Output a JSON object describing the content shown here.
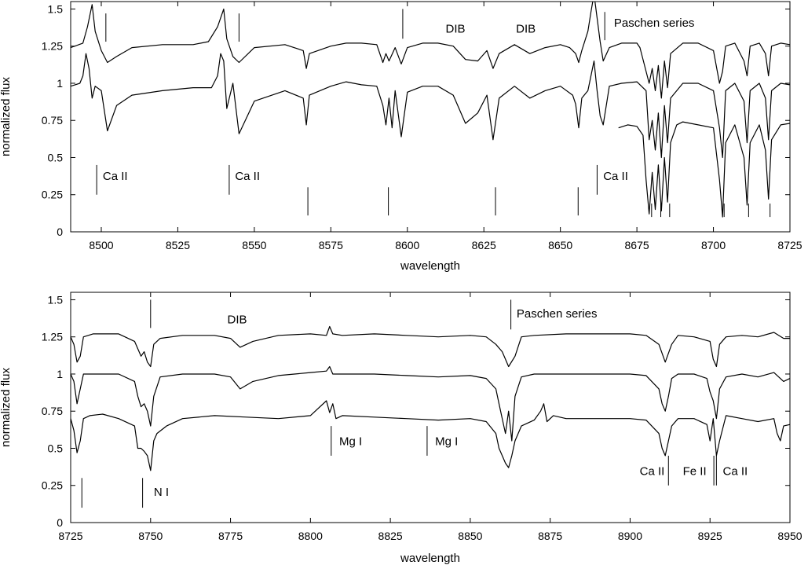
{
  "chart_data": [
    {
      "type": "line",
      "xlabel": "wavelength",
      "ylabel": "normalized flux",
      "xlim": [
        8490,
        8725
      ],
      "ylim": [
        0,
        1.55
      ],
      "x_ticks": [
        "8500",
        "8525",
        "8550",
        "8575",
        "8600",
        "8625",
        "8650",
        "8675",
        "8700",
        "8725"
      ],
      "x_tick_values": [
        8500,
        8525,
        8550,
        8575,
        8600,
        8625,
        8650,
        8675,
        8700,
        8725
      ],
      "y_ticks": [
        "0",
        "0.25",
        "0.5",
        "0.75",
        "1",
        "1.25",
        "1.5"
      ],
      "y_tick_values": [
        0,
        0.25,
        0.5,
        0.75,
        1,
        1.25,
        1.5
      ],
      "grid": false,
      "series": [
        {
          "x": [
            8490,
            8494,
            8495.5,
            8497,
            8498,
            8500,
            8502,
            8505,
            8510,
            8520,
            8530,
            8535,
            8538,
            8540,
            8541,
            8543,
            8545,
            8550,
            8560,
            8566,
            8567,
            8568,
            8575,
            8580,
            8585,
            8590,
            8592,
            8593,
            8594,
            8596,
            8598,
            8600,
            8605,
            8610,
            8615,
            8619,
            8623,
            8626,
            8628,
            8630,
            8635,
            8640,
            8645,
            8650,
            8653,
            8655,
            8656,
            8657,
            8659,
            8660,
            8661,
            8662,
            8663,
            8664,
            8666,
            8670,
            8675,
            8676,
            8679,
            8680,
            8681,
            8682,
            8683,
            8684,
            8685,
            8686,
            8690,
            8695,
            8700,
            8702,
            8703,
            8704,
            8707,
            8710,
            8711,
            8712,
            8715,
            8717,
            8718,
            8719,
            8722,
            8725
          ],
          "y": [
            1.24,
            1.27,
            1.38,
            1.53,
            1.35,
            1.22,
            1.14,
            1.18,
            1.24,
            1.26,
            1.26,
            1.28,
            1.38,
            1.5,
            1.3,
            1.18,
            1.14,
            1.24,
            1.26,
            1.22,
            1.1,
            1.2,
            1.25,
            1.27,
            1.27,
            1.26,
            1.14,
            1.2,
            1.15,
            1.24,
            1.13,
            1.24,
            1.27,
            1.27,
            1.25,
            1.16,
            1.15,
            1.22,
            1.1,
            1.2,
            1.26,
            1.2,
            1.24,
            1.26,
            1.24,
            1.2,
            1.14,
            1.22,
            1.35,
            1.48,
            1.6,
            1.44,
            1.28,
            1.15,
            1.24,
            1.27,
            1.27,
            1.24,
            1.0,
            1.1,
            0.95,
            1.12,
            0.9,
            1.15,
            0.97,
            1.2,
            1.27,
            1.27,
            1.22,
            1.0,
            1.08,
            1.25,
            1.27,
            1.15,
            1.05,
            1.25,
            1.27,
            1.2,
            1.05,
            1.25,
            1.27,
            1.26
          ]
        },
        {
          "x": [
            8490,
            8493,
            8494,
            8495,
            8496,
            8497,
            8498,
            8500,
            8502,
            8505,
            8510,
            8520,
            8530,
            8536,
            8538,
            8539,
            8540,
            8541,
            8543,
            8545,
            8550,
            8560,
            8566,
            8567,
            8568,
            8575,
            8580,
            8585,
            8590,
            8592,
            8593,
            8594,
            8595,
            8596,
            8598,
            8600,
            8605,
            8610,
            8615,
            8619,
            8623,
            8626,
            8628,
            8630,
            8635,
            8640,
            8645,
            8650,
            8654,
            8655,
            8656,
            8657,
            8659,
            8660,
            8661,
            8662,
            8663,
            8664,
            8666,
            8670,
            8675,
            8678,
            8679,
            8680,
            8681,
            8682,
            8683,
            8684,
            8685,
            8686,
            8690,
            8695,
            8700,
            8702,
            8703,
            8704,
            8707,
            8710,
            8711,
            8712,
            8715,
            8717,
            8718,
            8719,
            8722,
            8725
          ],
          "y": [
            0.98,
            1.0,
            1.05,
            1.2,
            1.1,
            0.9,
            0.98,
            0.95,
            0.68,
            0.85,
            0.92,
            0.95,
            0.97,
            0.97,
            1.05,
            1.2,
            1.15,
            0.83,
            1.0,
            0.66,
            0.88,
            0.95,
            0.9,
            0.72,
            0.92,
            0.98,
            1.01,
            0.99,
            0.98,
            0.85,
            0.72,
            0.9,
            0.7,
            0.95,
            0.64,
            0.94,
            0.98,
            0.98,
            0.92,
            0.73,
            0.8,
            0.92,
            0.62,
            0.9,
            0.98,
            0.9,
            0.95,
            0.98,
            0.92,
            0.86,
            0.7,
            0.9,
            0.95,
            1.05,
            1.15,
            0.95,
            0.78,
            0.72,
            0.98,
            1.0,
            1.01,
            0.95,
            0.62,
            0.75,
            0.55,
            0.8,
            0.5,
            0.85,
            0.6,
            0.9,
            1.0,
            1.0,
            0.95,
            0.7,
            0.5,
            0.95,
            1.0,
            0.88,
            0.6,
            0.95,
            1.0,
            0.9,
            0.62,
            0.95,
            1.0,
            0.99
          ]
        },
        {
          "x": [
            8669,
            8672,
            8675,
            8677,
            8678,
            8679,
            8680,
            8681,
            8682,
            8683,
            8684,
            8685,
            8686,
            8688,
            8690,
            8695,
            8700,
            8702,
            8703,
            8704,
            8707,
            8710,
            8711,
            8712,
            8715,
            8717,
            8718,
            8719,
            8722,
            8725
          ],
          "y": [
            0.7,
            0.72,
            0.71,
            0.65,
            0.35,
            0.12,
            0.4,
            0.15,
            0.45,
            0.14,
            0.5,
            0.2,
            0.6,
            0.72,
            0.74,
            0.72,
            0.7,
            0.35,
            0.1,
            0.6,
            0.72,
            0.5,
            0.18,
            0.6,
            0.72,
            0.55,
            0.22,
            0.62,
            0.72,
            0.73
          ]
        }
      ],
      "markers": [
        {
          "x": 8501.5,
          "y0": 1.28,
          "y1": 1.47
        },
        {
          "x": 8545,
          "y0": 1.28,
          "y1": 1.47
        },
        {
          "x": 8598.5,
          "y0": 1.3,
          "y1": 1.5
        },
        {
          "x": 8664.5,
          "y0": 1.29,
          "y1": 1.48
        },
        {
          "x": 8498.5,
          "y0": 0.25,
          "y1": 0.45
        },
        {
          "x": 8541.8,
          "y0": 0.25,
          "y1": 0.45
        },
        {
          "x": 8567.5,
          "y0": 0.11,
          "y1": 0.3
        },
        {
          "x": 8593.8,
          "y0": 0.11,
          "y1": 0.3
        },
        {
          "x": 8628.8,
          "y0": 0.11,
          "y1": 0.3
        },
        {
          "x": 8655.8,
          "y0": 0.11,
          "y1": 0.3
        },
        {
          "x": 8662,
          "y0": 0.25,
          "y1": 0.45
        },
        {
          "x": 8679.8,
          "y0": 0.1,
          "y1": 0.19
        },
        {
          "x": 8682.8,
          "y0": 0.1,
          "y1": 0.19
        },
        {
          "x": 8685.7,
          "y0": 0.1,
          "y1": 0.19
        },
        {
          "x": 8703.5,
          "y0": 0.1,
          "y1": 0.19
        },
        {
          "x": 8711.5,
          "y0": 0.1,
          "y1": 0.19
        },
        {
          "x": 8718.5,
          "y0": 0.1,
          "y1": 0.19
        }
      ],
      "annotations": [
        {
          "text": "DIB",
          "x": 8612.5,
          "y": 1.34
        },
        {
          "text": "DIB",
          "x": 8635.5,
          "y": 1.34
        },
        {
          "text": "Paschen series",
          "x": 8667.5,
          "y": 1.38
        },
        {
          "text": "Ca II",
          "x": 8500.5,
          "y": 0.35
        },
        {
          "text": "Ca II",
          "x": 8543.7,
          "y": 0.35
        },
        {
          "text": "Ca II",
          "x": 8664,
          "y": 0.35
        }
      ]
    },
    {
      "type": "line",
      "xlabel": "wavelength",
      "ylabel": "normalized flux",
      "xlim": [
        8725,
        8950
      ],
      "ylim": [
        0,
        1.55
      ],
      "x_ticks": [
        "8725",
        "8750",
        "8775",
        "8800",
        "8825",
        "8850",
        "8875",
        "8900",
        "8925",
        "8950"
      ],
      "x_tick_values": [
        8725,
        8750,
        8775,
        8800,
        8825,
        8850,
        8875,
        8900,
        8925,
        8950
      ],
      "y_ticks": [
        "0",
        "0.25",
        "0.5",
        "0.75",
        "1",
        "1.25",
        "1.5"
      ],
      "y_tick_values": [
        0,
        0.25,
        0.5,
        0.75,
        1,
        1.25,
        1.5
      ],
      "grid": false,
      "series": [
        {
          "x": [
            8725,
            8726,
            8727,
            8728,
            8729,
            8732,
            8740,
            8745,
            8747,
            8748,
            8749,
            8750,
            8751,
            8753,
            8760,
            8770,
            8775,
            8778,
            8782,
            8790,
            8800,
            8805,
            8806,
            8807,
            8810,
            8820,
            8830,
            8840,
            8850,
            8855,
            8858,
            8860,
            8861,
            8862,
            8864,
            8866,
            8870,
            8880,
            8890,
            8900,
            8905,
            8909,
            8911,
            8913,
            8915,
            8920,
            8925,
            8926,
            8927,
            8928,
            8930,
            8935,
            8940,
            8945,
            8948,
            8950
          ],
          "y": [
            1.25,
            1.2,
            1.08,
            1.12,
            1.25,
            1.27,
            1.27,
            1.22,
            1.12,
            1.15,
            1.08,
            1.05,
            1.2,
            1.24,
            1.26,
            1.26,
            1.24,
            1.18,
            1.22,
            1.26,
            1.27,
            1.26,
            1.32,
            1.27,
            1.26,
            1.27,
            1.26,
            1.25,
            1.26,
            1.25,
            1.2,
            1.15,
            1.1,
            1.05,
            1.12,
            1.25,
            1.26,
            1.27,
            1.27,
            1.27,
            1.26,
            1.2,
            1.08,
            1.2,
            1.26,
            1.25,
            1.22,
            1.1,
            1.05,
            1.2,
            1.25,
            1.26,
            1.25,
            1.28,
            1.24,
            1.24
          ]
        },
        {
          "x": [
            8725,
            8726,
            8727,
            8728,
            8729,
            8732,
            8740,
            8745,
            8746,
            8747,
            8748,
            8749,
            8750,
            8751,
            8753,
            8760,
            8770,
            8775,
            8778,
            8782,
            8790,
            8800,
            8805,
            8806,
            8807,
            8810,
            8820,
            8830,
            8840,
            8850,
            8855,
            8858,
            8859,
            8860,
            8861,
            8862,
            8863,
            8864,
            8866,
            8870,
            8880,
            8890,
            8900,
            8905,
            8909,
            8910,
            8911,
            8912,
            8913,
            8915,
            8920,
            8924,
            8925,
            8926,
            8927,
            8928,
            8930,
            8935,
            8940,
            8945,
            8948,
            8950
          ],
          "y": [
            1.0,
            0.95,
            0.8,
            0.9,
            1.0,
            1.0,
            1.0,
            0.95,
            0.85,
            0.78,
            0.8,
            0.75,
            0.65,
            0.85,
            0.98,
            1.0,
            1.0,
            0.98,
            0.9,
            0.95,
            0.99,
            1.01,
            1.02,
            1.05,
            1.0,
            1.0,
            1.0,
            0.99,
            0.98,
            0.99,
            0.97,
            0.9,
            0.8,
            0.7,
            0.6,
            0.75,
            0.55,
            0.85,
            0.98,
            1.0,
            1.0,
            1.0,
            1.0,
            0.99,
            0.9,
            0.8,
            0.75,
            0.85,
            0.97,
            1.0,
            1.0,
            0.97,
            0.88,
            0.82,
            0.7,
            0.9,
            0.98,
            1.0,
            0.98,
            1.01,
            0.95,
            0.97
          ]
        },
        {
          "x": [
            8725,
            8726,
            8727,
            8728,
            8729,
            8731,
            8735,
            8740,
            8745,
            8746,
            8747,
            8748,
            8749,
            8750,
            8751,
            8752,
            8755,
            8760,
            8770,
            8780,
            8790,
            8800,
            8802,
            8805,
            8806,
            8807,
            8808,
            8810,
            8820,
            8830,
            8840,
            8850,
            8855,
            8858,
            8859,
            8860,
            8861,
            8862,
            8863,
            8864,
            8866,
            8870,
            8872,
            8873,
            8874,
            8876,
            8880,
            8890,
            8900,
            8905,
            8909,
            8910,
            8911,
            8912,
            8913,
            8915,
            8920,
            8924,
            8925,
            8926,
            8927,
            8928,
            8930,
            8935,
            8940,
            8945,
            8946,
            8947,
            8948,
            8950
          ],
          "y": [
            0.7,
            0.62,
            0.47,
            0.55,
            0.7,
            0.72,
            0.73,
            0.7,
            0.65,
            0.5,
            0.5,
            0.48,
            0.45,
            0.35,
            0.55,
            0.6,
            0.65,
            0.7,
            0.72,
            0.71,
            0.7,
            0.72,
            0.76,
            0.82,
            0.74,
            0.8,
            0.7,
            0.72,
            0.71,
            0.7,
            0.69,
            0.7,
            0.68,
            0.6,
            0.5,
            0.45,
            0.4,
            0.37,
            0.45,
            0.55,
            0.65,
            0.69,
            0.75,
            0.8,
            0.68,
            0.72,
            0.7,
            0.7,
            0.7,
            0.69,
            0.6,
            0.5,
            0.45,
            0.55,
            0.65,
            0.7,
            0.7,
            0.66,
            0.55,
            0.7,
            0.45,
            0.55,
            0.72,
            0.7,
            0.68,
            0.7,
            0.6,
            0.55,
            0.65,
            0.66
          ]
        }
      ],
      "markers": [
        {
          "x": 8750,
          "y0": 1.31,
          "y1": 1.5
        },
        {
          "x": 8862.7,
          "y0": 1.3,
          "y1": 1.5
        },
        {
          "x": 8728.5,
          "y0": 0.1,
          "y1": 0.3
        },
        {
          "x": 8747.5,
          "y0": 0.1,
          "y1": 0.3
        },
        {
          "x": 8806.5,
          "y0": 0.45,
          "y1": 0.65
        },
        {
          "x": 8836.5,
          "y0": 0.45,
          "y1": 0.65
        },
        {
          "x": 8912,
          "y0": 0.25,
          "y1": 0.45
        },
        {
          "x": 8926.2,
          "y0": 0.25,
          "y1": 0.45
        },
        {
          "x": 8927,
          "y0": 0.25,
          "y1": 0.45
        }
      ],
      "annotations": [
        {
          "text": "DIB",
          "x": 8774,
          "y": 1.34
        },
        {
          "text": "Paschen series",
          "x": 8864.5,
          "y": 1.38
        },
        {
          "text": "Mg I",
          "x": 8809,
          "y": 0.52
        },
        {
          "text": "Mg I",
          "x": 8839,
          "y": 0.52
        },
        {
          "text": "Ca II",
          "x": 8903,
          "y": 0.32
        },
        {
          "text": "Fe II",
          "x": 8916.5,
          "y": 0.32
        },
        {
          "text": "Ca II",
          "x": 8929,
          "y": 0.32
        },
        {
          "text": "N I",
          "x": 8751,
          "y": 0.18
        }
      ]
    }
  ]
}
